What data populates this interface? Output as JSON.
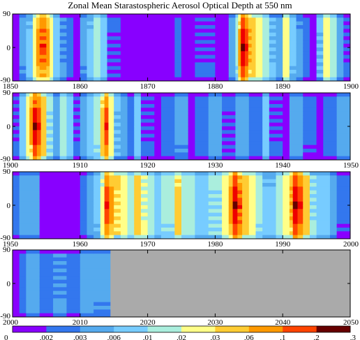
{
  "title": "Zonal Mean Starastospheric Aerosol Optical Depth at 550 nm",
  "colors": {
    "levels": [
      "#8800ff",
      "#3377ee",
      "#55aaee",
      "#77ccff",
      "#aaeedd",
      "#ffff88",
      "#ffcc33",
      "#ff9900",
      "#ff4400",
      "#ee0000",
      "#660000"
    ],
    "no_data": "#aaaaaa"
  },
  "colorbar_ticks": [
    "0",
    ".002",
    ".003",
    ".006",
    ".01",
    ".02",
    ".03",
    ".06",
    ".1",
    ".2",
    ".3"
  ],
  "chart_data": [
    {
      "type": "heatmap",
      "period": "1850-1900",
      "xlim": [
        1850,
        1900
      ],
      "ylim": [
        -90,
        90
      ],
      "xticks": [
        "1850",
        "1860",
        "1870",
        "1880",
        "1890",
        "1900"
      ],
      "yticks": [
        "90",
        "0",
        "-90"
      ],
      "bands": [
        [
          1850,
          1851,
          0
        ],
        [
          1851,
          1852,
          2
        ],
        [
          1852,
          1853,
          3
        ],
        [
          1853,
          1853.5,
          5
        ],
        [
          1853.5,
          1854,
          7
        ],
        [
          1854,
          1855,
          8
        ],
        [
          1855,
          1855.5,
          7
        ],
        [
          1855.5,
          1856,
          5
        ],
        [
          1856,
          1857,
          3
        ],
        [
          1857,
          1858,
          2
        ],
        [
          1858,
          1859,
          1
        ],
        [
          1859,
          1860,
          0
        ],
        [
          1860,
          1861,
          2
        ],
        [
          1861,
          1862,
          3
        ],
        [
          1862,
          1863,
          4
        ],
        [
          1863,
          1864,
          3
        ],
        [
          1864,
          1866,
          1
        ],
        [
          1866,
          1874,
          0
        ],
        [
          1874,
          1875,
          1
        ],
        [
          1875,
          1877,
          0
        ],
        [
          1877,
          1880,
          1
        ],
        [
          1880,
          1882,
          0
        ],
        [
          1882,
          1883,
          2
        ],
        [
          1883,
          1883.4,
          4
        ],
        [
          1883.4,
          1883.8,
          7
        ],
        [
          1883.8,
          1884.4,
          9
        ],
        [
          1884.4,
          1884.9,
          8
        ],
        [
          1884.9,
          1885.4,
          7
        ],
        [
          1885.4,
          1886,
          6
        ],
        [
          1886,
          1887,
          5
        ],
        [
          1887,
          1888,
          4
        ],
        [
          1888,
          1889,
          3
        ],
        [
          1889,
          1890,
          2
        ],
        [
          1890,
          1891,
          5
        ],
        [
          1891,
          1892,
          3
        ],
        [
          1892,
          1893,
          2
        ],
        [
          1893,
          1894,
          1
        ],
        [
          1894,
          1895,
          0
        ],
        [
          1895,
          1896,
          3
        ],
        [
          1896,
          1897,
          5
        ],
        [
          1897,
          1898,
          4
        ],
        [
          1898,
          1899,
          2
        ],
        [
          1899,
          1900,
          1
        ]
      ]
    },
    {
      "type": "heatmap",
      "period": "1900-1950",
      "xlim": [
        1900,
        1950
      ],
      "ylim": [
        -90,
        90
      ],
      "xticks": [
        "1900",
        "1910",
        "1920",
        "1930",
        "1940",
        "1950"
      ],
      "yticks": [
        "90",
        "0",
        "-90"
      ],
      "bands": [
        [
          1900,
          1901,
          1
        ],
        [
          1901,
          1902,
          3
        ],
        [
          1902,
          1902.5,
          5
        ],
        [
          1902.5,
          1903,
          7
        ],
        [
          1903,
          1903.6,
          9
        ],
        [
          1903.6,
          1904.2,
          8
        ],
        [
          1904.2,
          1905,
          6
        ],
        [
          1905,
          1906,
          4
        ],
        [
          1906,
          1907,
          2
        ],
        [
          1907,
          1908,
          4
        ],
        [
          1908,
          1909,
          3
        ],
        [
          1909,
          1910,
          1
        ],
        [
          1910,
          1911,
          2
        ],
        [
          1911,
          1912,
          3
        ],
        [
          1912,
          1913,
          4
        ],
        [
          1913,
          1913.6,
          6
        ],
        [
          1913.6,
          1914.2,
          8
        ],
        [
          1914.2,
          1915,
          5
        ],
        [
          1915,
          1916,
          3
        ],
        [
          1916,
          1917,
          2
        ],
        [
          1917,
          1918,
          1
        ],
        [
          1918,
          1919,
          3
        ],
        [
          1919,
          1921,
          1
        ],
        [
          1921,
          1922,
          0
        ],
        [
          1922,
          1924,
          1
        ],
        [
          1924,
          1926,
          2
        ],
        [
          1926,
          1927,
          0
        ],
        [
          1927,
          1929,
          1
        ],
        [
          1929,
          1931,
          2
        ],
        [
          1931,
          1933,
          1
        ],
        [
          1933,
          1935,
          2
        ],
        [
          1935,
          1937,
          1
        ],
        [
          1937,
          1938,
          3
        ],
        [
          1938,
          1940,
          1
        ],
        [
          1940,
          1941,
          0
        ],
        [
          1941,
          1943,
          2
        ],
        [
          1943,
          1945,
          1
        ],
        [
          1945,
          1946,
          0
        ],
        [
          1946,
          1948,
          1
        ],
        [
          1948,
          1950,
          2
        ]
      ]
    },
    {
      "type": "heatmap",
      "period": "1950-2000",
      "xlim": [
        1950,
        2000
      ],
      "ylim": [
        -90,
        90
      ],
      "xticks": [
        "1950",
        "1960",
        "1970",
        "1980",
        "1990",
        "2000"
      ],
      "yticks": [
        "90",
        "0",
        "-90"
      ],
      "bands": [
        [
          1950,
          1951,
          1
        ],
        [
          1951,
          1954,
          2
        ],
        [
          1954,
          1960,
          0
        ],
        [
          1960,
          1961,
          1
        ],
        [
          1961,
          1962,
          2
        ],
        [
          1962,
          1963,
          3
        ],
        [
          1963,
          1963.6,
          5
        ],
        [
          1963.6,
          1964.3,
          8
        ],
        [
          1964.3,
          1965,
          7
        ],
        [
          1965,
          1966,
          6
        ],
        [
          1966,
          1967,
          5
        ],
        [
          1967,
          1968,
          4
        ],
        [
          1968,
          1969,
          6
        ],
        [
          1969,
          1970,
          5
        ],
        [
          1970,
          1971,
          4
        ],
        [
          1971,
          1972,
          3
        ],
        [
          1972,
          1974,
          4
        ],
        [
          1974,
          1975,
          6
        ],
        [
          1975,
          1977,
          4
        ],
        [
          1977,
          1979,
          3
        ],
        [
          1979,
          1981,
          4
        ],
        [
          1981,
          1982,
          5
        ],
        [
          1982,
          1982.6,
          7
        ],
        [
          1982.6,
          1983.3,
          9
        ],
        [
          1983.3,
          1984,
          8
        ],
        [
          1984,
          1985,
          6
        ],
        [
          1985,
          1986,
          5
        ],
        [
          1986,
          1987,
          4
        ],
        [
          1987,
          1989,
          3
        ],
        [
          1989,
          1990,
          4
        ],
        [
          1990,
          1991,
          5
        ],
        [
          1991,
          1991.5,
          7
        ],
        [
          1991.5,
          1992.2,
          9
        ],
        [
          1992.2,
          1993,
          8
        ],
        [
          1993,
          1994,
          6
        ],
        [
          1994,
          1995,
          4
        ],
        [
          1995,
          1997,
          3
        ],
        [
          1997,
          1998,
          2
        ],
        [
          1998,
          2000,
          1
        ]
      ]
    },
    {
      "type": "heatmap",
      "period": "2000-2050",
      "xlim": [
        2000,
        2050
      ],
      "ylim": [
        -90,
        90
      ],
      "xticks": [
        "2000",
        "2010",
        "2020",
        "2030",
        "2040",
        "2050"
      ],
      "yticks": [
        "90",
        "0",
        "-90"
      ],
      "bands": [
        [
          2000,
          2001,
          0
        ],
        [
          2001,
          2002,
          1
        ],
        [
          2002,
          2004,
          2
        ],
        [
          2004,
          2006,
          1
        ],
        [
          2006,
          2008,
          2
        ],
        [
          2008,
          2010,
          1
        ],
        [
          2010,
          2012,
          2
        ],
        [
          2012,
          2014.5,
          2
        ]
      ],
      "no_data_from": 2014.5
    }
  ]
}
